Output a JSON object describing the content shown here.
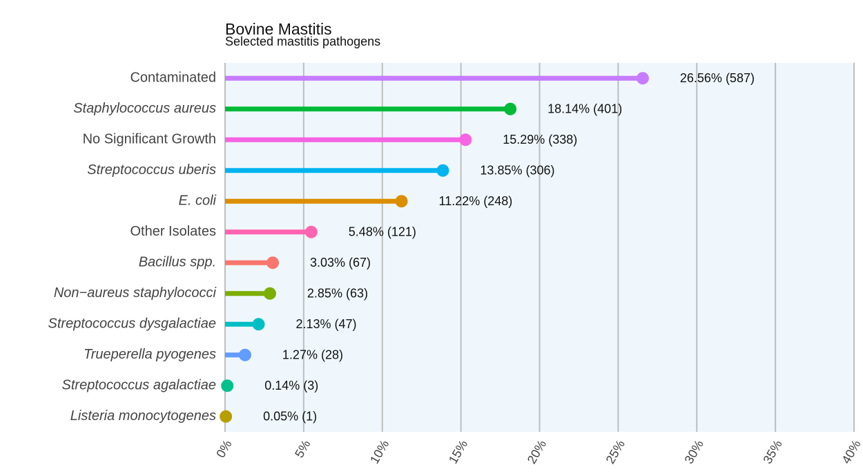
{
  "chart_data": {
    "type": "lollipop",
    "title": "Bovine Mastitis",
    "subtitle": "Selected mastitis pathogens",
    "categories": [
      "Contaminated",
      "Staphylococcus aureus",
      "No Significant Growth",
      "Streptococcus uberis",
      "E. coli",
      "Other Isolates",
      "Bacillus spp.",
      "Non−aureus staphylococci",
      "Streptococcus dysgalactiae",
      "Trueperella pyogenes",
      "Streptococcus agalactiae",
      "Listeria monocytogenes"
    ],
    "label_italic": [
      false,
      true,
      false,
      true,
      true,
      false,
      true,
      true,
      true,
      true,
      true,
      true
    ],
    "values": [
      26.56,
      18.14,
      15.29,
      13.85,
      11.22,
      5.48,
      3.03,
      2.85,
      2.13,
      1.27,
      0.14,
      0.05
    ],
    "value_labels": [
      "26.56% (587)",
      "18.14% (401)",
      "15.29% (338)",
      "13.85% (306)",
      "11.22% (248)",
      "5.48% (121)",
      "3.03% (67)",
      "2.85% (63)",
      "2.13% (47)",
      "1.27% (28)",
      "0.14% (3)",
      "0.05% (1)"
    ],
    "colors": [
      "#c77cff",
      "#00ba38",
      "#f564e3",
      "#00b4ef",
      "#db8e00",
      "#ff64b0",
      "#f8766d",
      "#7cae00",
      "#00bfc4",
      "#619cff",
      "#00c08b",
      "#b79f00"
    ],
    "xlim": [
      0,
      40
    ],
    "xticks": [
      {
        "value": 0,
        "label": "0%"
      },
      {
        "value": 5,
        "label": "5%"
      },
      {
        "value": 10,
        "label": "10%"
      },
      {
        "value": 15,
        "label": "15%"
      },
      {
        "value": 20,
        "label": "20%"
      },
      {
        "value": 25,
        "label": "25%"
      },
      {
        "value": 30,
        "label": "30%"
      },
      {
        "value": 35,
        "label": "35%"
      },
      {
        "value": 40,
        "label": "40%"
      }
    ],
    "grid": true
  }
}
